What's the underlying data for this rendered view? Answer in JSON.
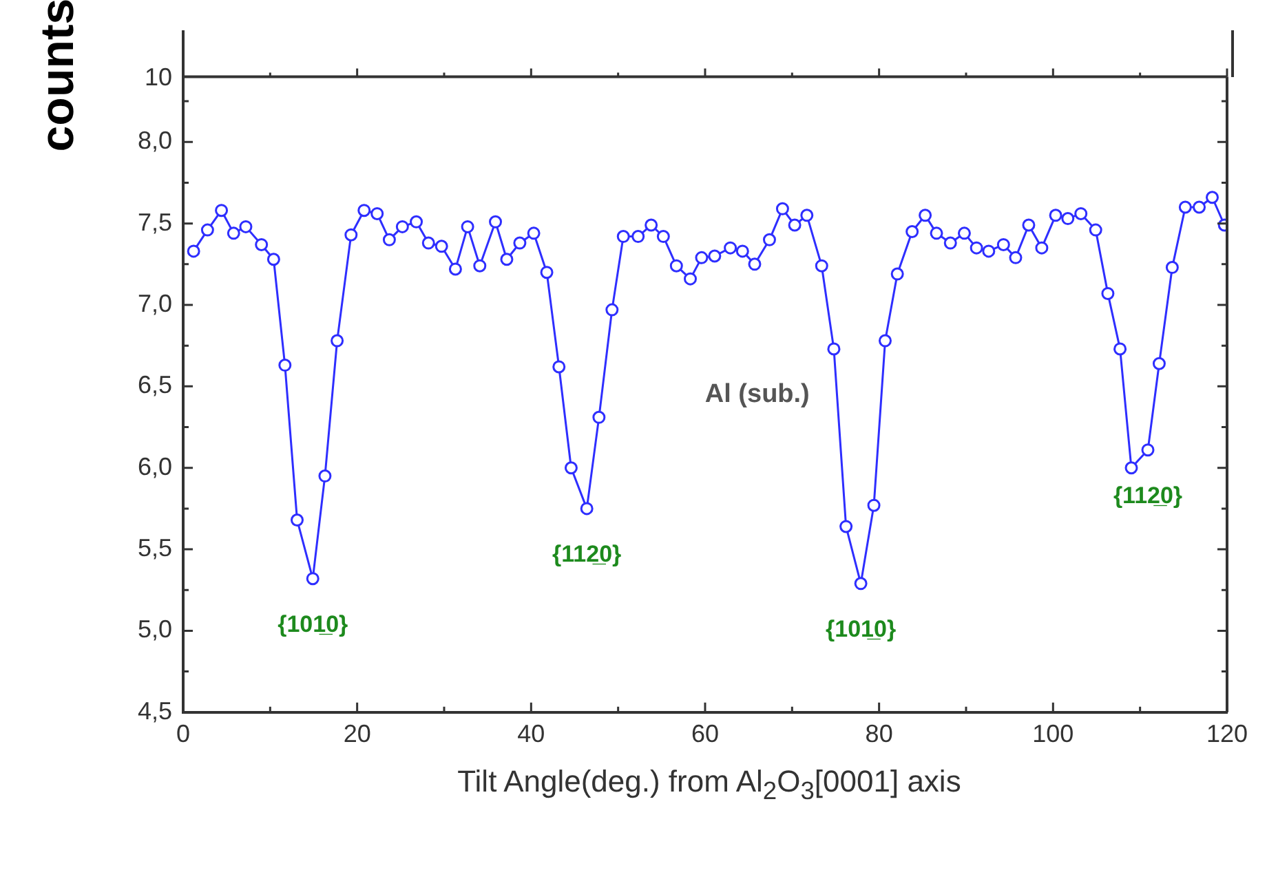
{
  "chart_data": [
    {
      "type": "other",
      "annotations": [
        "10"
      ]
    },
    {
      "type": "line",
      "xlabel": "Tilt Angle(deg.) from Al$_{2}$O$_{3}$[0001] axis",
      "ylabel": "counts",
      "xlim": [
        0,
        120
      ],
      "ylim": [
        4.5,
        8.4
      ],
      "xticks": [
        0,
        {
          "value": 10,
          "label": null
        },
        20,
        {
          "value": 30,
          "label": null
        },
        40,
        {
          "value": 50,
          "label": null
        },
        60,
        {
          "value": 70,
          "label": null
        },
        80,
        {
          "value": 90,
          "label": null
        },
        100,
        {
          "value": 110,
          "label": null
        },
        120
      ],
      "yticks": [
        {
          "value": 4.5,
          "label": "4,5"
        },
        {
          "value": 4.75,
          "label": null
        },
        {
          "value": 5,
          "label": "5,0"
        },
        {
          "value": 5.25,
          "label": null
        },
        {
          "value": 5.5,
          "label": "5,5"
        },
        {
          "value": 5.75,
          "label": null
        },
        {
          "value": 6,
          "label": "6,0"
        },
        {
          "value": 6.25,
          "label": null
        },
        {
          "value": 6.5,
          "label": "6,5"
        },
        {
          "value": 6.75,
          "label": null
        },
        {
          "value": 7,
          "label": "7,0"
        },
        {
          "value": 7.25,
          "label": null
        },
        {
          "value": 7.5,
          "label": "7,5"
        },
        {
          "value": 7.75,
          "label": null
        },
        {
          "value": 8,
          "label": "8,0"
        },
        {
          "value": 8.25,
          "label": null
        }
      ],
      "marker": "circle",
      "line_style": "solid",
      "series": [
        {
          "name": "Al (sub.)",
          "color": "#2e2eff",
          "x": [
            1.2,
            2.8,
            4.4,
            5.8,
            7.2,
            9.0,
            10.4,
            11.7,
            13.1,
            14.9,
            16.3,
            17.7,
            19.3,
            20.8,
            22.3,
            23.7,
            25.2,
            26.8,
            28.2,
            29.7,
            31.3,
            32.7,
            34.1,
            35.9,
            37.2,
            38.7,
            40.3,
            41.8,
            43.2,
            44.6,
            46.4,
            47.8,
            49.3,
            50.6,
            52.3,
            53.8,
            55.2,
            56.7,
            58.3,
            59.6,
            61.1,
            62.9,
            64.3,
            65.7,
            67.4,
            68.9,
            70.3,
            71.7,
            73.4,
            74.8,
            76.2,
            77.9,
            79.4,
            80.7,
            82.1,
            83.8,
            85.3,
            86.6,
            88.2,
            89.8,
            91.2,
            92.6,
            94.3,
            95.7,
            97.2,
            98.7,
            100.3,
            101.7,
            103.2,
            104.9,
            106.3,
            107.7,
            109.0,
            110.9,
            112.2,
            113.7,
            115.2,
            116.8,
            118.3,
            119.7
          ],
          "values": [
            7.33,
            7.46,
            7.58,
            7.44,
            7.48,
            7.37,
            7.28,
            6.63,
            5.68,
            5.32,
            5.95,
            6.78,
            7.43,
            7.58,
            7.56,
            7.4,
            7.48,
            7.51,
            7.38,
            7.36,
            7.22,
            7.48,
            7.24,
            7.51,
            7.28,
            7.38,
            7.44,
            7.2,
            6.62,
            6.0,
            5.75,
            6.31,
            6.97,
            7.42,
            7.42,
            7.49,
            7.42,
            7.24,
            7.16,
            7.29,
            7.3,
            7.35,
            7.33,
            7.25,
            7.4,
            7.59,
            7.49,
            7.55,
            7.24,
            6.73,
            5.64,
            5.29,
            5.77,
            6.78,
            7.19,
            7.45,
            7.55,
            7.44,
            7.38,
            7.44,
            7.35,
            7.33,
            7.37,
            7.29,
            7.49,
            7.35,
            7.55,
            7.53,
            7.56,
            7.46,
            7.07,
            6.73,
            6.0,
            6.11,
            6.64,
            7.23,
            7.6,
            7.6,
            7.66,
            7.49
          ]
        }
      ],
      "annotations": [
        {
          "text": "{101̲0}",
          "x": 14.9,
          "y": 5.32
        },
        {
          "text": "{112̲0}",
          "x": 46.4,
          "y": 5.75
        },
        {
          "text": "{101̲0}",
          "x": 77.9,
          "y": 5.29
        },
        {
          "text": "{112̲0}",
          "x": 110.9,
          "y": 6.11
        }
      ]
    }
  ]
}
